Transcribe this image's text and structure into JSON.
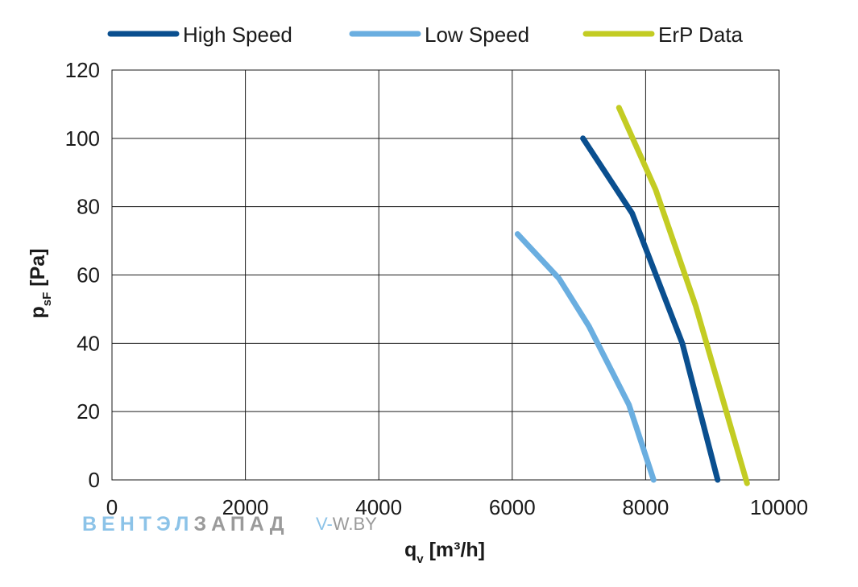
{
  "chart_data": {
    "type": "line",
    "title": "",
    "xlabel": {
      "main": "q",
      "sub": "v",
      "rest": " [m³/h]"
    },
    "ylabel": {
      "main": "p",
      "sub": "sF",
      "rest": " [Pa]"
    },
    "xlim": [
      0,
      10000
    ],
    "ylim": [
      0,
      120
    ],
    "xticks": [
      0,
      2000,
      4000,
      6000,
      8000,
      10000
    ],
    "yticks": [
      0,
      20,
      40,
      60,
      80,
      100,
      120
    ],
    "grid": true,
    "legend_position": "top",
    "series": [
      {
        "name": "High Speed",
        "color": "#0a4f8f",
        "points": [
          [
            7060,
            100
          ],
          [
            7800,
            78
          ],
          [
            8550,
            40
          ],
          [
            9080,
            0
          ]
        ]
      },
      {
        "name": "Low Speed",
        "color": "#6aaee0",
        "points": [
          [
            6080,
            72
          ],
          [
            6700,
            59
          ],
          [
            7150,
            45
          ],
          [
            7750,
            22
          ],
          [
            8120,
            0
          ]
        ]
      },
      {
        "name": "ErP Data",
        "color": "#c3cc23",
        "points": [
          [
            7600,
            109
          ],
          [
            8150,
            85
          ],
          [
            8750,
            51
          ],
          [
            9520,
            -1
          ]
        ]
      }
    ]
  },
  "watermark": {
    "part1": "ВЕНТЭЛ",
    "part1_color": "#8cc3e8",
    "part2": "ЗАПАД",
    "part2_color": "#9a9a9a",
    "site_prefix": "V-",
    "site_rest": "W.BY",
    "site_prefix_color": "#8cc3e8",
    "site_rest_color": "#9a9a9a"
  }
}
